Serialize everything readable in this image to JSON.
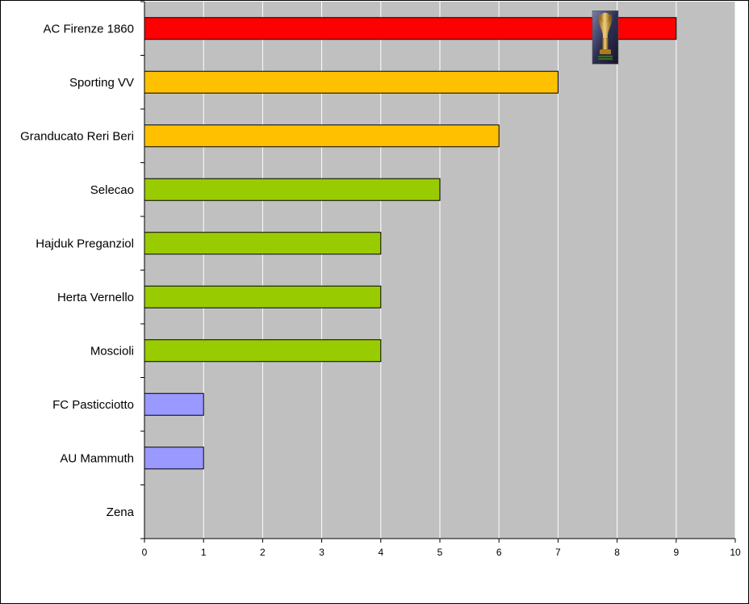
{
  "chart_data": {
    "type": "bar",
    "orientation": "horizontal",
    "categories": [
      "AC Firenze 1860",
      "Sporting VV",
      "Granducato Reri Beri",
      "Selecao",
      "Hajduk Preganziol",
      "Herta Vernello",
      "Moscioli",
      "FC Pasticciotto",
      "AU Mammuth",
      "Zena"
    ],
    "values": [
      9,
      7,
      6,
      5,
      4,
      4,
      4,
      1,
      1,
      0
    ],
    "bar_colors": [
      "#ff0000",
      "#ffc000",
      "#ffc000",
      "#99cc00",
      "#99cc00",
      "#99cc00",
      "#99cc00",
      "#9999ff",
      "#9999ff",
      "#9999ff"
    ],
    "xlim": [
      0,
      10
    ],
    "x_ticks": [
      "0",
      "1",
      "2",
      "3",
      "4",
      "5",
      "6",
      "7",
      "8",
      "9",
      "10"
    ],
    "title": "",
    "xlabel": "",
    "ylabel": "",
    "grid": true,
    "plot_background": "#c0c0c0",
    "gridline_color": "#ffffff",
    "trophy_marker": {
      "category": "AC Firenze 1860",
      "icon": "trophy-icon"
    }
  }
}
